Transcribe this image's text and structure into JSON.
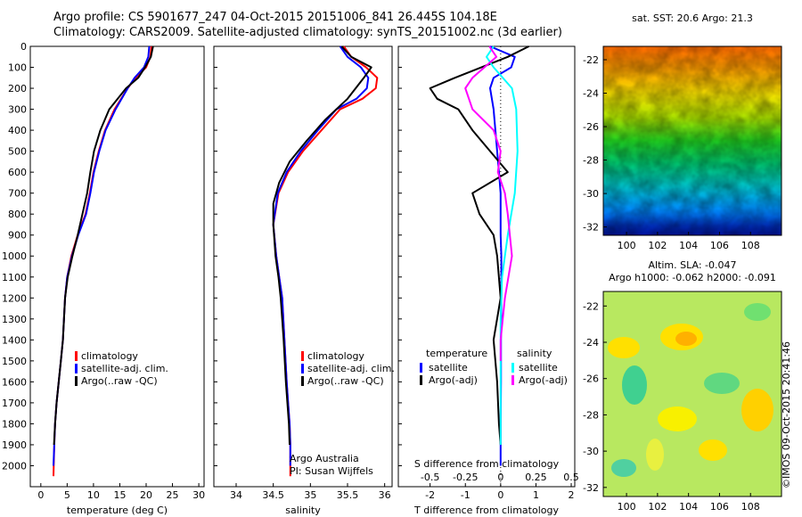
{
  "header": {
    "title_line1": "Argo profile: CS 5901677_247 04-Oct-2015 20151006_841 26.445S 104.18E",
    "title_line2": "Climatology: CARS2009. Satellite-adjusted climatology: synTS_20151002.nc (3d earlier)"
  },
  "maps": {
    "sst_title": "sat. SST: 20.6  Argo: 21.3",
    "sla_title1": "Altim. SLA: -0.047",
    "sla_title2": "Argo h1000: -0.062  h2000: -0.091",
    "lat_ticks": [
      "-22",
      "-24",
      "-26",
      "-28",
      "-30",
      "-32"
    ],
    "lon_ticks": [
      "100",
      "102",
      "104",
      "106",
      "108"
    ]
  },
  "credit": {
    "project": "Argo Australia",
    "pi": "PI: Susan Wijffels",
    "imos": "©IMOS 09-Oct-2015 20:41:46"
  },
  "legends": {
    "climatology": "climatology",
    "satellite_adj": "satellite-adj. clim.",
    "argo_raw": "Argo(..raw -QC)",
    "temperature": "temperature",
    "salinity": "salinity",
    "satellite": "satellite",
    "argo_adj": "Argo(-adj)"
  },
  "colors": {
    "climatology": "#ff0000",
    "satellite": "#0000ff",
    "argo": "#000000",
    "sal_satellite": "#00ffff",
    "sal_argo": "#ff00ff"
  },
  "chart_data": [
    {
      "type": "line",
      "xlabel": "temperature (deg C)",
      "ylabel": "",
      "xlim": [
        -2,
        31
      ],
      "ylim": [
        2100,
        0
      ],
      "x_ticks": [
        "0",
        "5",
        "10",
        "15",
        "20",
        "25",
        "30"
      ],
      "y_ticks": [
        "0",
        "100",
        "200",
        "300",
        "400",
        "500",
        "600",
        "700",
        "800",
        "900",
        "1000",
        "1100",
        "1200",
        "1300",
        "1400",
        "1500",
        "1600",
        "1700",
        "1800",
        "1900",
        "2000"
      ],
      "series": [
        {
          "name": "climatology",
          "x": [
            21.0,
            20.8,
            20.0,
            18.0,
            16.5,
            14.0,
            12.2,
            11.0,
            10.0,
            9.3,
            8.5,
            7.0,
            5.8,
            5.0,
            4.6,
            4.2,
            3.8,
            3.4,
            3.0,
            2.7,
            2.55,
            2.4
          ],
          "y": [
            0,
            50,
            100,
            150,
            200,
            300,
            400,
            500,
            600,
            700,
            800,
            900,
            1000,
            1100,
            1200,
            1400,
            1500,
            1600,
            1700,
            1800,
            1900,
            2050
          ]
        },
        {
          "name": "satellite-adj. clim.",
          "x": [
            20.6,
            20.4,
            19.6,
            17.8,
            16.5,
            14.2,
            12.3,
            11.1,
            10.1,
            9.4,
            8.6,
            7.1,
            5.9,
            5.0,
            4.6,
            4.2,
            3.8,
            3.4,
            3.0,
            2.7,
            2.55,
            2.4
          ],
          "y": [
            0,
            50,
            100,
            150,
            200,
            300,
            400,
            500,
            600,
            700,
            800,
            900,
            1000,
            1100,
            1200,
            1400,
            1500,
            1600,
            1700,
            1800,
            1900,
            2000
          ]
        },
        {
          "name": "Argo(..raw -QC)",
          "x": [
            21.3,
            20.9,
            19.8,
            18.5,
            16.2,
            13.0,
            11.3,
            10.1,
            9.4,
            8.8,
            7.9,
            7.0,
            6.0,
            5.1,
            4.6,
            4.2,
            3.8,
            3.4,
            3.0,
            2.7,
            2.5
          ],
          "y": [
            0,
            50,
            100,
            150,
            200,
            300,
            400,
            500,
            600,
            700,
            800,
            900,
            1000,
            1100,
            1200,
            1400,
            1500,
            1600,
            1700,
            1800,
            1900
          ]
        }
      ]
    },
    {
      "type": "line",
      "xlabel": "salinity",
      "ylabel": "",
      "xlim": [
        33.7,
        36.1
      ],
      "ylim": [
        2100,
        0
      ],
      "x_ticks": [
        "34",
        "34.5",
        "35",
        "35.5",
        "36"
      ],
      "series": [
        {
          "name": "climatology",
          "x": [
            35.45,
            35.55,
            35.75,
            35.9,
            35.88,
            35.7,
            35.4,
            35.15,
            34.9,
            34.7,
            34.57,
            34.5,
            34.54,
            34.58,
            34.62,
            34.65,
            34.68,
            34.7,
            34.72,
            34.73,
            34.73
          ],
          "y": [
            0,
            50,
            100,
            150,
            200,
            250,
            300,
            400,
            500,
            600,
            700,
            850,
            1000,
            1100,
            1200,
            1400,
            1600,
            1700,
            1800,
            1900,
            2050
          ]
        },
        {
          "name": "satellite-adj. clim.",
          "x": [
            35.4,
            35.5,
            35.68,
            35.78,
            35.76,
            35.62,
            35.35,
            35.1,
            34.87,
            34.68,
            34.56,
            34.5,
            34.54,
            34.58,
            34.62,
            34.65,
            34.68,
            34.7,
            34.72,
            34.73,
            34.73
          ],
          "y": [
            0,
            50,
            100,
            150,
            200,
            250,
            300,
            400,
            500,
            600,
            700,
            850,
            1000,
            1100,
            1200,
            1400,
            1600,
            1700,
            1800,
            1900,
            2000
          ]
        },
        {
          "name": "Argo(..raw -QC)",
          "x": [
            35.42,
            35.55,
            35.82,
            35.72,
            35.5,
            35.2,
            34.95,
            34.72,
            34.58,
            34.5,
            34.5,
            34.53,
            34.57,
            34.6,
            34.64,
            34.67,
            34.69,
            34.71,
            34.72
          ],
          "y": [
            0,
            50,
            100,
            150,
            250,
            350,
            450,
            550,
            650,
            750,
            850,
            1000,
            1100,
            1200,
            1400,
            1600,
            1700,
            1800,
            1900
          ]
        }
      ]
    },
    {
      "type": "line",
      "xlabel": "T difference from climatology",
      "ylabel": "",
      "xlim": [
        -2.9,
        2.1
      ],
      "ylim": [
        2100,
        0
      ],
      "x_ticks": [
        "-2",
        "-1",
        "0",
        "1",
        "2"
      ],
      "secondary_xlabel": "S difference from climatology",
      "secondary_x_ticks": [
        "-0.5",
        "-0.25",
        "0",
        "0.25",
        "0.5"
      ],
      "series": [
        {
          "name": "temperature satellite",
          "x": [
            -0.3,
            0.4,
            0.3,
            -0.2,
            -0.3,
            -0.2,
            -0.15,
            -0.1,
            -0.05,
            0.0,
            0.0,
            0.0,
            0.02,
            0.02,
            0.01,
            0.01,
            0.0,
            0.0,
            0.0
          ],
          "y": [
            0,
            50,
            100,
            150,
            200,
            300,
            400,
            500,
            600,
            700,
            800,
            900,
            1000,
            1200,
            1400,
            1600,
            1800,
            1900,
            2000
          ]
        },
        {
          "name": "temperature Argo(-adj)",
          "x": [
            0.8,
            0.2,
            -1.3,
            -2.0,
            -1.8,
            -1.2,
            -0.8,
            -0.3,
            0.2,
            -0.8,
            -0.6,
            -0.2,
            -0.1,
            0.0,
            -0.2,
            -0.1,
            -0.05,
            0.0
          ],
          "y": [
            0,
            50,
            150,
            200,
            250,
            300,
            400,
            500,
            600,
            700,
            800,
            900,
            1000,
            1200,
            1400,
            1600,
            1800,
            1900
          ]
        },
        {
          "name": "salinity satellite",
          "x": [
            -0.05,
            -0.1,
            -0.05,
            0.08,
            0.11,
            0.12,
            0.1,
            0.05,
            0.01,
            0.0,
            0.0,
            0.0,
            0.0
          ],
          "y": [
            0,
            50,
            100,
            200,
            300,
            500,
            700,
            900,
            1100,
            1300,
            1500,
            1700,
            1900
          ]
        },
        {
          "name": "salinity Argo(-adj)",
          "x": [
            -0.08,
            -0.03,
            -0.2,
            -0.25,
            -0.2,
            -0.05,
            0.0,
            -0.02,
            0.03,
            0.05,
            0.08,
            0.03,
            0.0,
            0.0
          ],
          "y": [
            0,
            50,
            150,
            200,
            300,
            400,
            500,
            600,
            700,
            800,
            1000,
            1200,
            1400,
            1500
          ]
        }
      ]
    }
  ]
}
